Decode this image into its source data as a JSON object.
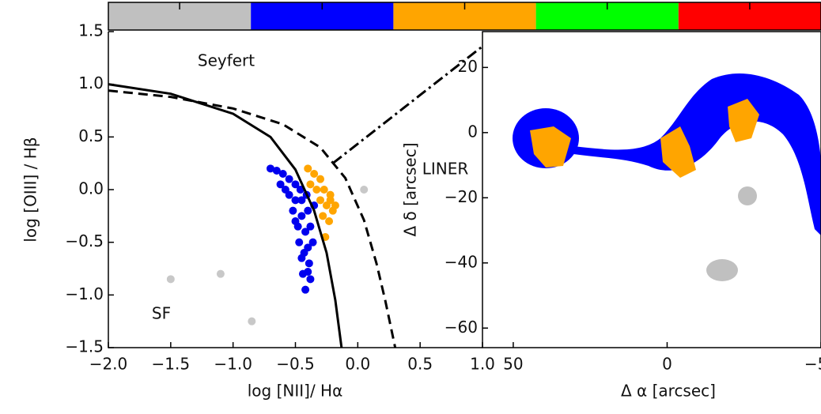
{
  "chart_data": [
    {
      "type": "scatter",
      "xlabel": "log [NII]/ Hα",
      "ylabel": "log [OIII] / Hβ",
      "annotations": [
        "Seyfert",
        "LINER",
        "SF"
      ],
      "xlim": [
        -2.0,
        1.0
      ],
      "ylim": [
        -1.5,
        1.5
      ],
      "xticks": [
        {
          "value": -2.0,
          "label": "−2.0"
        },
        {
          "value": -1.5,
          "label": "−1.5"
        },
        {
          "value": -1.0,
          "label": "−1.0"
        },
        {
          "value": -0.5,
          "label": "−0.5"
        },
        {
          "value": 0.0,
          "label": "0.0"
        },
        {
          "value": 0.5,
          "label": "0.5"
        },
        {
          "value": 1.0,
          "label": "1.0"
        }
      ],
      "yticks": [
        {
          "value": -1.5,
          "label": "−1.5"
        },
        {
          "value": -1.0,
          "label": "−1.0"
        },
        {
          "value": -0.5,
          "label": "−0.5"
        },
        {
          "value": 0.0,
          "label": "0.0"
        },
        {
          "value": 0.5,
          "label": "0.5"
        },
        {
          "value": 1.0,
          "label": "1.0"
        },
        {
          "value": 1.5,
          "label": "1.5"
        }
      ],
      "series": [
        {
          "color": "#0000ee",
          "x": [
            -0.7,
            -0.65,
            -0.6,
            -0.55,
            -0.5,
            -0.62,
            -0.55,
            -0.5,
            -0.45,
            -0.52,
            -0.45,
            -0.4,
            -0.48,
            -0.42,
            -0.38,
            -0.47,
            -0.4,
            -0.36,
            -0.45,
            -0.39,
            -0.44,
            -0.38,
            -0.42,
            -0.58,
            -0.5,
            -0.43,
            -0.4,
            -0.46,
            -0.41,
            -0.35
          ],
          "values": [
            0.2,
            0.18,
            0.15,
            0.1,
            0.05,
            0.05,
            -0.05,
            -0.1,
            -0.1,
            -0.2,
            -0.25,
            -0.2,
            -0.35,
            -0.4,
            -0.35,
            -0.5,
            -0.55,
            -0.5,
            -0.65,
            -0.7,
            -0.8,
            -0.85,
            -0.95,
            0.0,
            -0.3,
            -0.6,
            -0.78,
            0.0,
            -0.05,
            -0.15
          ]
        },
        {
          "color": "#ffa500",
          "x": [
            -0.4,
            -0.35,
            -0.38,
            -0.3,
            -0.33,
            -0.27,
            -0.3,
            -0.22,
            -0.25,
            -0.2,
            -0.28,
            -0.23,
            -0.26,
            -0.22,
            -0.18
          ],
          "values": [
            0.2,
            0.15,
            0.05,
            0.1,
            0.0,
            0.0,
            -0.1,
            -0.05,
            -0.15,
            -0.2,
            -0.25,
            -0.3,
            -0.45,
            -0.1,
            -0.15
          ]
        },
        {
          "color": "#c8c8c8",
          "x": [
            -1.5,
            -1.1,
            -0.85,
            0.05
          ],
          "values": [
            -0.85,
            -0.8,
            -1.25,
            0.0
          ]
        }
      ],
      "lines": [
        {
          "style": "solid",
          "x": [
            -2.0,
            -1.5,
            -1.0,
            -0.7,
            -0.5,
            -0.35,
            -0.25,
            -0.18,
            -0.13
          ],
          "values": [
            1.0,
            0.91,
            0.72,
            0.5,
            0.19,
            -0.2,
            -0.6,
            -1.05,
            -1.5
          ]
        },
        {
          "style": "dashed",
          "x": [
            -2.0,
            -1.5,
            -1.0,
            -0.6,
            -0.3,
            -0.1,
            0.05,
            0.15,
            0.22,
            0.3
          ],
          "values": [
            0.94,
            0.88,
            0.77,
            0.62,
            0.4,
            0.11,
            -0.29,
            -0.7,
            -1.05,
            -1.5
          ]
        },
        {
          "style": "dashdot",
          "x": [
            -0.2,
            1.0
          ],
          "values": [
            0.25,
            1.36
          ]
        }
      ]
    },
    {
      "type": "map",
      "xlabel": "Δ α [arcsec]",
      "ylabel": "Δ δ [arcsec]",
      "xlim": [
        60,
        -50
      ],
      "ylim": [
        -66,
        31
      ],
      "xticks": [
        50,
        0,
        {
          "value": -50,
          "label": "−50"
        }
      ],
      "yticks": [
        20,
        0,
        {
          "value": -20,
          "label": "−20"
        },
        {
          "value": -40,
          "label": "−40"
        },
        {
          "value": -60,
          "label": "−60"
        }
      ],
      "colorbar": [
        "#c0c0c0",
        "#0000ff",
        "#ffa500",
        "#00ff00",
        "#ff0000"
      ]
    }
  ]
}
